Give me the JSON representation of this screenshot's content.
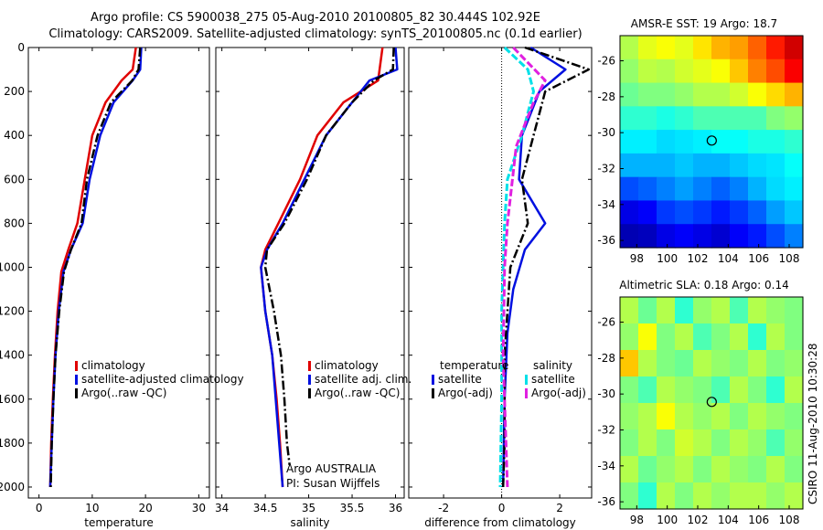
{
  "header": {
    "title_line1": "Argo profile: CS 5900038_275 05-Aug-2010 20100805_82 30.444S 102.92E",
    "title_line2": "Climatology: CARS2009. Satellite-adjusted climatology: synTS_20100805.nc (0.1d earlier)"
  },
  "side_label": "CSIRO 11-Aug-2010 10:30:28",
  "colors": {
    "climatology": "#e00000",
    "satellite": "#0010e0",
    "argo": "#000000",
    "sal_satellite": "#00e0e8",
    "sal_argo": "#e020e0"
  },
  "chart_data": [
    {
      "id": "temperature",
      "type": "line",
      "xlabel": "temperature",
      "xticks": [
        0,
        10,
        20,
        30
      ],
      "yticks": [
        0,
        200,
        400,
        600,
        800,
        1000,
        1200,
        1400,
        1600,
        1800,
        2000
      ],
      "xlim": [
        -2,
        32
      ],
      "ylim": [
        2050,
        0
      ],
      "legend": [
        "climatology",
        "satellite-adjusted climatology",
        "Argo(..raw -QC)"
      ],
      "series": [
        {
          "name": "climatology",
          "style": "climatology",
          "points": [
            [
              18.2,
              0
            ],
            [
              17.6,
              100
            ],
            [
              15.5,
              150
            ],
            [
              12.5,
              250
            ],
            [
              10,
              400
            ],
            [
              8.6,
              600
            ],
            [
              7.2,
              800
            ],
            [
              5.5,
              920
            ],
            [
              4.2,
              1020
            ],
            [
              3.5,
              1200
            ],
            [
              3,
              1400
            ],
            [
              2.6,
              1600
            ],
            [
              2.3,
              1800
            ],
            [
              2.1,
              2000
            ]
          ]
        },
        {
          "name": "satellite-adjusted climatology",
          "style": "satellite",
          "points": [
            [
              19.2,
              0
            ],
            [
              19,
              100
            ],
            [
              17.6,
              150
            ],
            [
              14,
              250
            ],
            [
              11.5,
              400
            ],
            [
              9.5,
              600
            ],
            [
              8.2,
              800
            ],
            [
              6,
              920
            ],
            [
              4.6,
              1020
            ],
            [
              3.7,
              1200
            ],
            [
              3.1,
              1400
            ],
            [
              2.7,
              1600
            ],
            [
              2.4,
              1800
            ],
            [
              2.1,
              2000
            ]
          ]
        },
        {
          "name": "Argo(..raw -QC)",
          "style": "argo",
          "points": [
            [
              19,
              0
            ],
            [
              18.7,
              100
            ],
            [
              17.5,
              150
            ],
            [
              13.5,
              250
            ],
            [
              11,
              400
            ],
            [
              9,
              600
            ],
            [
              8,
              800
            ],
            [
              6,
              920
            ],
            [
              4.7,
              1020
            ],
            [
              3.8,
              1200
            ],
            [
              3.1,
              1400
            ],
            [
              2.7,
              1600
            ],
            [
              2.4,
              1800
            ],
            [
              2.2,
              2000
            ]
          ]
        }
      ]
    },
    {
      "id": "salinity",
      "type": "line",
      "xlabel": "salinity",
      "xticks": [
        34,
        34.5,
        35,
        35.5,
        36
      ],
      "xlim": [
        33.93,
        36.1
      ],
      "ylim": [
        2050,
        0
      ],
      "legend": [
        "climatology",
        "satellite adj. clim.",
        "Argo(..raw -QC)"
      ],
      "annotation": [
        "Argo AUSTRALIA",
        "PI: Susan Wijffels"
      ],
      "series": [
        {
          "name": "climatology",
          "style": "climatology",
          "points": [
            [
              35.85,
              0
            ],
            [
              35.8,
              150
            ],
            [
              35.4,
              250
            ],
            [
              35.1,
              400
            ],
            [
              34.9,
              600
            ],
            [
              34.65,
              800
            ],
            [
              34.5,
              920
            ],
            [
              34.45,
              1000
            ],
            [
              34.5,
              1200
            ],
            [
              34.58,
              1400
            ],
            [
              34.63,
              1600
            ],
            [
              34.67,
              1800
            ],
            [
              34.7,
              2000
            ]
          ]
        },
        {
          "name": "satellite adj. clim.",
          "style": "satellite",
          "points": [
            [
              36,
              0
            ],
            [
              36.02,
              100
            ],
            [
              35.7,
              150
            ],
            [
              35.5,
              250
            ],
            [
              35.2,
              400
            ],
            [
              34.95,
              600
            ],
            [
              34.7,
              800
            ],
            [
              34.52,
              920
            ],
            [
              34.45,
              1000
            ],
            [
              34.5,
              1200
            ],
            [
              34.58,
              1400
            ],
            [
              34.62,
              1600
            ],
            [
              34.66,
              1800
            ],
            [
              34.7,
              2000
            ]
          ]
        },
        {
          "name": "Argo(..raw -QC)",
          "style": "argo",
          "points": [
            [
              35.98,
              0
            ],
            [
              35.97,
              100
            ],
            [
              35.75,
              150
            ],
            [
              35.5,
              250
            ],
            [
              35.2,
              400
            ],
            [
              34.98,
              600
            ],
            [
              34.72,
              800
            ],
            [
              34.52,
              920
            ],
            [
              34.5,
              1000
            ],
            [
              34.6,
              1200
            ],
            [
              34.68,
              1400
            ],
            [
              34.72,
              1600
            ],
            [
              34.75,
              1800
            ],
            [
              34.78,
              1900
            ]
          ]
        }
      ]
    },
    {
      "id": "difference",
      "type": "line",
      "xlabel": "difference from climatology",
      "xticks": [
        -2,
        0,
        2
      ],
      "xlim": [
        -3.2,
        3.1
      ],
      "ylim": [
        2050,
        0
      ],
      "legend_temperature": [
        "temperature",
        "satellite",
        "Argo(-adj)"
      ],
      "legend_salinity": [
        "salinity",
        "satellite",
        "Argo(-adj)"
      ],
      "series": [
        {
          "name": "temperature satellite",
          "style": "satellite",
          "points": [
            [
              1,
              0
            ],
            [
              2.2,
              100
            ],
            [
              1.3,
              200
            ],
            [
              0.7,
              400
            ],
            [
              0.6,
              600
            ],
            [
              1.5,
              800
            ],
            [
              0.8,
              920
            ],
            [
              0.4,
              1100
            ],
            [
              0.2,
              1300
            ],
            [
              0.1,
              1600
            ],
            [
              0.05,
              2000
            ]
          ]
        },
        {
          "name": "temperature Argo(-adj)",
          "style": "argo",
          "points": [
            [
              0.8,
              0
            ],
            [
              3,
              100
            ],
            [
              1.5,
              200
            ],
            [
              1.1,
              400
            ],
            [
              0.7,
              600
            ],
            [
              0.9,
              800
            ],
            [
              0.3,
              1000
            ],
            [
              0.1,
              1400
            ],
            [
              0.1,
              1800
            ],
            [
              0.05,
              2000
            ]
          ]
        },
        {
          "name": "salinity satellite",
          "style": "sal_satellite",
          "points": [
            [
              0.1,
              0
            ],
            [
              0.9,
              100
            ],
            [
              1.1,
              200
            ],
            [
              0.7,
              400
            ],
            [
              0.2,
              600
            ],
            [
              0.1,
              800
            ],
            [
              0,
              1200
            ],
            [
              0,
              1600
            ],
            [
              -0.05,
              2000
            ]
          ]
        },
        {
          "name": "salinity Argo(-adj)",
          "style": "sal_argo",
          "points": [
            [
              0.4,
              0
            ],
            [
              1.5,
              150
            ],
            [
              1.1,
              250
            ],
            [
              0.5,
              450
            ],
            [
              0.2,
              800
            ],
            [
              0.1,
              1000
            ],
            [
              0.05,
              1400
            ],
            [
              0.15,
              1800
            ],
            [
              0.2,
              2000
            ]
          ]
        }
      ]
    },
    {
      "id": "amsr",
      "type": "heatmap",
      "title": "AMSR-E SST: 19 Argo: 18.7",
      "xticks": [
        98,
        100,
        102,
        104,
        106,
        108
      ],
      "yticks": [
        -26,
        -28,
        -30,
        -32,
        -34,
        -36
      ],
      "xlim": [
        96.9,
        108.9
      ],
      "ylim": [
        -36.4,
        -24.6
      ],
      "argo_position": [
        102.92,
        -30.44
      ],
      "rows": [
        [
          0.55,
          0.6,
          0.62,
          0.6,
          0.65,
          0.7,
          0.72,
          0.78,
          0.85,
          0.92
        ],
        [
          0.52,
          0.56,
          0.55,
          0.58,
          0.6,
          0.62,
          0.68,
          0.75,
          0.8,
          0.88
        ],
        [
          0.48,
          0.5,
          0.5,
          0.52,
          0.55,
          0.55,
          0.58,
          0.62,
          0.66,
          0.7
        ],
        [
          0.42,
          0.42,
          0.4,
          0.42,
          0.45,
          0.45,
          0.45,
          0.45,
          0.5,
          0.52
        ],
        [
          0.36,
          0.36,
          0.34,
          0.35,
          0.36,
          0.38,
          0.38,
          0.4,
          0.4,
          0.42
        ],
        [
          0.3,
          0.3,
          0.3,
          0.32,
          0.3,
          0.3,
          0.32,
          0.34,
          0.35,
          0.38
        ],
        [
          0.2,
          0.22,
          0.25,
          0.28,
          0.25,
          0.22,
          0.25,
          0.3,
          0.34,
          0.36
        ],
        [
          0.1,
          0.12,
          0.18,
          0.2,
          0.18,
          0.15,
          0.18,
          0.22,
          0.28,
          0.32
        ],
        [
          0.05,
          0.06,
          0.1,
          0.12,
          0.1,
          0.08,
          0.12,
          0.15,
          0.2,
          0.25
        ]
      ]
    },
    {
      "id": "sla",
      "type": "heatmap",
      "title": "Altimetric SLA: 0.18 Argo: 0.14",
      "xticks": [
        98,
        100,
        102,
        104,
        106,
        108
      ],
      "yticks": [
        -26,
        -28,
        -30,
        -32,
        -34,
        -36
      ],
      "xlim": [
        96.9,
        108.9
      ],
      "ylim": [
        -36.4,
        -24.6
      ],
      "argo_position": [
        102.92,
        -30.44
      ],
      "rows": [
        [
          0.55,
          0.48,
          0.55,
          0.42,
          0.52,
          0.55,
          0.45,
          0.55,
          0.52,
          0.5
        ],
        [
          0.52,
          0.62,
          0.5,
          0.55,
          0.45,
          0.5,
          0.55,
          0.42,
          0.55,
          0.5
        ],
        [
          0.68,
          0.55,
          0.5,
          0.48,
          0.55,
          0.52,
          0.5,
          0.55,
          0.5,
          0.52
        ],
        [
          0.5,
          0.45,
          0.55,
          0.52,
          0.5,
          0.45,
          0.55,
          0.5,
          0.42,
          0.55
        ],
        [
          0.52,
          0.55,
          0.62,
          0.55,
          0.52,
          0.55,
          0.5,
          0.55,
          0.52,
          0.5
        ],
        [
          0.5,
          0.55,
          0.5,
          0.58,
          0.55,
          0.5,
          0.55,
          0.52,
          0.45,
          0.52
        ],
        [
          0.55,
          0.48,
          0.52,
          0.55,
          0.5,
          0.55,
          0.52,
          0.5,
          0.55,
          0.5
        ],
        [
          0.5,
          0.42,
          0.55,
          0.5,
          0.55,
          0.52,
          0.55,
          0.55,
          0.52,
          0.55
        ]
      ]
    }
  ]
}
